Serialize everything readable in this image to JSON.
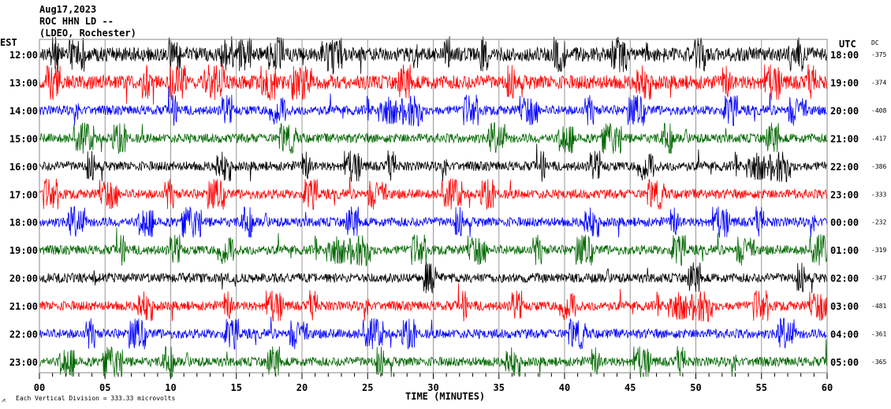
{
  "header": {
    "date": "Aug17,2023",
    "station": "ROC HHN LD --",
    "network": "(LDEO, Rochester)"
  },
  "chart_data": {
    "type": "line",
    "subtype": "helicorder seismogram",
    "left_axis_title": "EST",
    "right_axis_title": "UTC",
    "dc_title": "DC",
    "xlabel": "TIME (MINUTES)",
    "xlim": [
      0,
      60
    ],
    "x_ticks": [
      "00",
      "05",
      "10",
      "15",
      "20",
      "25",
      "30",
      "35",
      "40",
      "45",
      "50",
      "55",
      "60"
    ],
    "minor_tick_interval_minutes": 1,
    "grid": "vertical lines every 5 minutes",
    "scale_note": "Each Vertical Division =  333.33 microvolts",
    "trace_colors": [
      "#000000",
      "#ff0000",
      "#0000ff",
      "#006600"
    ],
    "rows": [
      {
        "est": "12:00",
        "utc": "18:00",
        "dc": "-375"
      },
      {
        "est": "13:00",
        "utc": "19:00",
        "dc": "-374"
      },
      {
        "est": "14:00",
        "utc": "20:00",
        "dc": "-408"
      },
      {
        "est": "15:00",
        "utc": "21:00",
        "dc": "-417"
      },
      {
        "est": "16:00",
        "utc": "22:00",
        "dc": "-386"
      },
      {
        "est": "17:00",
        "utc": "23:00",
        "dc": "-333"
      },
      {
        "est": "18:00",
        "utc": "00:00",
        "dc": "-232"
      },
      {
        "est": "19:00",
        "utc": "01:00",
        "dc": "-319"
      },
      {
        "est": "20:00",
        "utc": "02:00",
        "dc": "-347"
      },
      {
        "est": "21:00",
        "utc": "03:00",
        "dc": "-481"
      },
      {
        "est": "22:00",
        "utc": "04:00",
        "dc": "-361"
      },
      {
        "est": "23:00",
        "utc": "05:00",
        "dc": "-365"
      }
    ]
  }
}
